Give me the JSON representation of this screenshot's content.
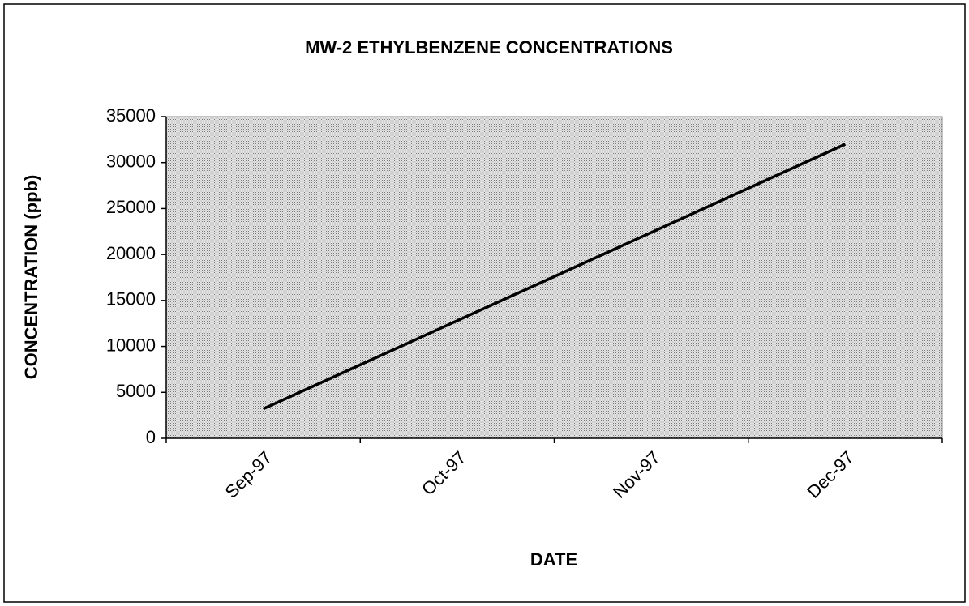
{
  "chart_data": {
    "type": "line",
    "title": "MW-2 ETHYLBENZENE CONCENTRATIONS",
    "x_label": "DATE",
    "y_label": "CONCENTRATION (ppb)",
    "categories": [
      "Sep-97",
      "Oct-97",
      "Nov-97",
      "Dec-97"
    ],
    "series": [
      {
        "name": "MW-2",
        "color": "#000000",
        "values": [
          3200,
          12800,
          22400,
          32000
        ]
      }
    ],
    "ylim": [
      0,
      35000
    ],
    "yticks": [
      0,
      5000,
      10000,
      15000,
      20000,
      25000,
      30000,
      35000
    ],
    "grid": false
  }
}
